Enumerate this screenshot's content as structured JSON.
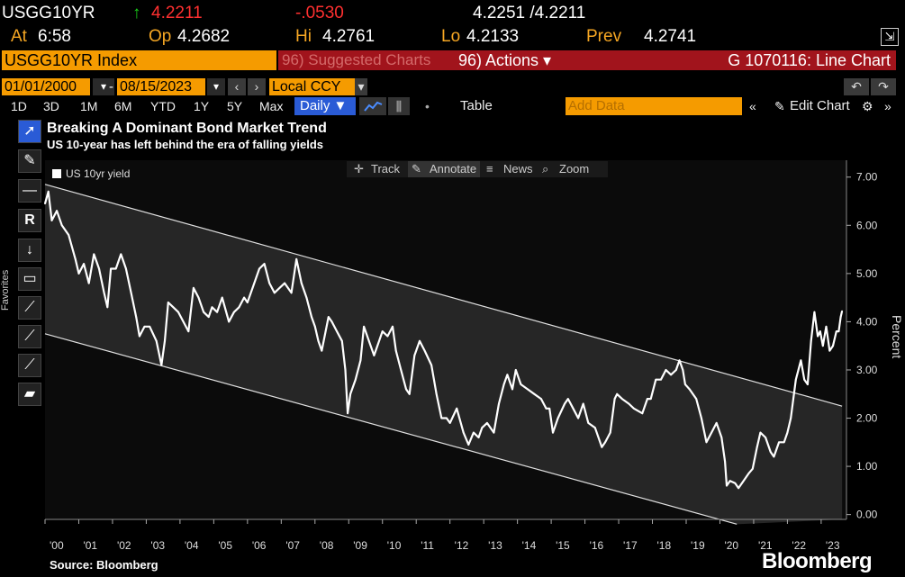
{
  "quote": {
    "ticker": "USGG10YR",
    "arrow": "↑",
    "last": "4.2211",
    "change": "-.0530",
    "bid_ask": "4.2251 /4.2211",
    "at_label": "At",
    "at_value": "6:58",
    "open_label": "Op",
    "open_value": "4.2682",
    "high_label": "Hi",
    "high_value": "4.2761",
    "low_label": "Lo",
    "low_value": "4.2133",
    "prev_label": "Prev",
    "prev_value": "4.2741"
  },
  "security_bar": {
    "index_name": "USGG10YR Index",
    "suggested": "96) Suggested Charts",
    "actions": "96) Actions ▾",
    "chart_id": "G 1070116: Line Chart"
  },
  "controls": {
    "start_date": "01/01/2000",
    "dash": "-",
    "end_date": "08/15/2023",
    "currency": "Local CCY",
    "periods": [
      "1D",
      "3D",
      "1M",
      "6M",
      "YTD",
      "1Y",
      "5Y",
      "Max"
    ],
    "frequency": "Daily ▼",
    "table": "Table",
    "add_data_placeholder": "Add Data",
    "edit_chart": "Edit Chart",
    "favorites": "Favorites"
  },
  "mini_toolbar": {
    "track": "Track",
    "annotate": "Annotate",
    "news": "News",
    "zoom": "Zoom"
  },
  "footer": {
    "source": "Source: Bloomberg",
    "logo": "Bloomberg"
  },
  "colors": {
    "amber": "#f5a623",
    "up_green": "#19d219",
    "down_red": "#ff3030",
    "bar_red": "#a1141c",
    "series": "#ffffff"
  },
  "chart_data": {
    "type": "line",
    "title": "Breaking A Dominant Bond Market Trend",
    "subtitle": "US 10-year has left behind the era of falling yields",
    "ylabel": "Percent",
    "xlabel": "",
    "ylim": [
      -0.1,
      7.35
    ],
    "y_ticks": [
      "7.00",
      "6.00",
      "5.00",
      "4.00",
      "3.00",
      "2.00",
      "1.00",
      "0.00"
    ],
    "x_tick_labels": [
      "'00",
      "'01",
      "'02",
      "'03",
      "'04",
      "'05",
      "'06",
      "'07",
      "'08",
      "'09",
      "'10",
      "'11",
      "'12",
      "'13",
      "'14",
      "'15",
      "'16",
      "'17",
      "'18",
      "'19",
      "'20",
      "'21",
      "'22",
      "'23"
    ],
    "legend": [
      "US 10yr yield"
    ],
    "channel": {
      "upper": [
        [
          2000.0,
          6.85
        ],
        [
          2023.62,
          2.25
        ]
      ],
      "lower": [
        [
          2000.0,
          3.75
        ],
        [
          2020.5,
          -0.2
        ]
      ]
    },
    "series": [
      {
        "name": "US 10yr yield",
        "points": [
          [
            2000.0,
            6.45
          ],
          [
            2000.1,
            6.7
          ],
          [
            2000.2,
            6.1
          ],
          [
            2000.35,
            6.3
          ],
          [
            2000.5,
            6.0
          ],
          [
            2000.7,
            5.8
          ],
          [
            2000.9,
            5.3
          ],
          [
            2001.0,
            5.0
          ],
          [
            2001.15,
            5.2
          ],
          [
            2001.3,
            4.8
          ],
          [
            2001.45,
            5.4
          ],
          [
            2001.6,
            5.1
          ],
          [
            2001.75,
            4.6
          ],
          [
            2001.85,
            4.3
          ],
          [
            2001.95,
            5.1
          ],
          [
            2002.1,
            5.1
          ],
          [
            2002.25,
            5.4
          ],
          [
            2002.4,
            5.1
          ],
          [
            2002.55,
            4.6
          ],
          [
            2002.7,
            4.1
          ],
          [
            2002.8,
            3.7
          ],
          [
            2002.95,
            3.9
          ],
          [
            2003.1,
            3.9
          ],
          [
            2003.3,
            3.6
          ],
          [
            2003.45,
            3.1
          ],
          [
            2003.55,
            3.6
          ],
          [
            2003.65,
            4.4
          ],
          [
            2003.8,
            4.3
          ],
          [
            2003.95,
            4.2
          ],
          [
            2004.1,
            4.0
          ],
          [
            2004.25,
            3.8
          ],
          [
            2004.4,
            4.7
          ],
          [
            2004.55,
            4.5
          ],
          [
            2004.7,
            4.2
          ],
          [
            2004.85,
            4.1
          ],
          [
            2004.95,
            4.3
          ],
          [
            2005.1,
            4.2
          ],
          [
            2005.25,
            4.5
          ],
          [
            2005.45,
            4.0
          ],
          [
            2005.6,
            4.2
          ],
          [
            2005.75,
            4.3
          ],
          [
            2005.9,
            4.5
          ],
          [
            2006.0,
            4.4
          ],
          [
            2006.15,
            4.7
          ],
          [
            2006.35,
            5.1
          ],
          [
            2006.5,
            5.2
          ],
          [
            2006.65,
            4.8
          ],
          [
            2006.8,
            4.6
          ],
          [
            2006.95,
            4.7
          ],
          [
            2007.1,
            4.8
          ],
          [
            2007.3,
            4.6
          ],
          [
            2007.45,
            5.3
          ],
          [
            2007.6,
            4.8
          ],
          [
            2007.75,
            4.5
          ],
          [
            2007.9,
            4.1
          ],
          [
            2008.0,
            3.9
          ],
          [
            2008.1,
            3.6
          ],
          [
            2008.2,
            3.4
          ],
          [
            2008.4,
            4.1
          ],
          [
            2008.5,
            4.0
          ],
          [
            2008.65,
            3.8
          ],
          [
            2008.8,
            3.6
          ],
          [
            2008.9,
            3.0
          ],
          [
            2008.97,
            2.1
          ],
          [
            2009.05,
            2.5
          ],
          [
            2009.2,
            2.8
          ],
          [
            2009.35,
            3.2
          ],
          [
            2009.45,
            3.9
          ],
          [
            2009.6,
            3.6
          ],
          [
            2009.75,
            3.3
          ],
          [
            2009.9,
            3.6
          ],
          [
            2010.0,
            3.8
          ],
          [
            2010.15,
            3.7
          ],
          [
            2010.3,
            3.9
          ],
          [
            2010.4,
            3.4
          ],
          [
            2010.55,
            3.0
          ],
          [
            2010.7,
            2.6
          ],
          [
            2010.8,
            2.5
          ],
          [
            2010.95,
            3.3
          ],
          [
            2011.1,
            3.6
          ],
          [
            2011.25,
            3.4
          ],
          [
            2011.45,
            3.1
          ],
          [
            2011.6,
            2.5
          ],
          [
            2011.75,
            2.0
          ],
          [
            2011.9,
            2.0
          ],
          [
            2012.0,
            1.9
          ],
          [
            2012.2,
            2.2
          ],
          [
            2012.4,
            1.7
          ],
          [
            2012.55,
            1.45
          ],
          [
            2012.7,
            1.7
          ],
          [
            2012.85,
            1.6
          ],
          [
            2012.95,
            1.8
          ],
          [
            2013.1,
            1.9
          ],
          [
            2013.3,
            1.7
          ],
          [
            2013.45,
            2.3
          ],
          [
            2013.6,
            2.7
          ],
          [
            2013.7,
            2.9
          ],
          [
            2013.85,
            2.6
          ],
          [
            2013.95,
            3.0
          ],
          [
            2014.1,
            2.7
          ],
          [
            2014.3,
            2.6
          ],
          [
            2014.5,
            2.5
          ],
          [
            2014.7,
            2.4
          ],
          [
            2014.85,
            2.2
          ],
          [
            2014.95,
            2.2
          ],
          [
            2015.05,
            1.7
          ],
          [
            2015.2,
            2.0
          ],
          [
            2015.4,
            2.3
          ],
          [
            2015.5,
            2.4
          ],
          [
            2015.65,
            2.2
          ],
          [
            2015.8,
            2.0
          ],
          [
            2015.95,
            2.3
          ],
          [
            2016.1,
            1.9
          ],
          [
            2016.3,
            1.8
          ],
          [
            2016.5,
            1.4
          ],
          [
            2016.6,
            1.5
          ],
          [
            2016.75,
            1.7
          ],
          [
            2016.88,
            2.4
          ],
          [
            2016.95,
            2.5
          ],
          [
            2017.1,
            2.4
          ],
          [
            2017.3,
            2.3
          ],
          [
            2017.45,
            2.2
          ],
          [
            2017.7,
            2.1
          ],
          [
            2017.85,
            2.4
          ],
          [
            2017.95,
            2.4
          ],
          [
            2018.1,
            2.8
          ],
          [
            2018.25,
            2.8
          ],
          [
            2018.4,
            3.0
          ],
          [
            2018.55,
            2.9
          ],
          [
            2018.7,
            3.0
          ],
          [
            2018.8,
            3.2
          ],
          [
            2018.9,
            3.0
          ],
          [
            2018.97,
            2.7
          ],
          [
            2019.1,
            2.6
          ],
          [
            2019.3,
            2.4
          ],
          [
            2019.45,
            2.0
          ],
          [
            2019.6,
            1.5
          ],
          [
            2019.75,
            1.7
          ],
          [
            2019.9,
            1.9
          ],
          [
            2020.05,
            1.6
          ],
          [
            2020.15,
            1.1
          ],
          [
            2020.2,
            0.6
          ],
          [
            2020.3,
            0.7
          ],
          [
            2020.45,
            0.65
          ],
          [
            2020.55,
            0.55
          ],
          [
            2020.7,
            0.7
          ],
          [
            2020.85,
            0.85
          ],
          [
            2020.97,
            0.95
          ],
          [
            2021.1,
            1.4
          ],
          [
            2021.2,
            1.7
          ],
          [
            2021.35,
            1.6
          ],
          [
            2021.5,
            1.3
          ],
          [
            2021.6,
            1.2
          ],
          [
            2021.75,
            1.5
          ],
          [
            2021.9,
            1.5
          ],
          [
            2022.0,
            1.7
          ],
          [
            2022.1,
            2.0
          ],
          [
            2022.25,
            2.8
          ],
          [
            2022.4,
            3.2
          ],
          [
            2022.5,
            2.8
          ],
          [
            2022.6,
            2.7
          ],
          [
            2022.7,
            3.6
          ],
          [
            2022.8,
            4.2
          ],
          [
            2022.9,
            3.7
          ],
          [
            2022.97,
            3.8
          ],
          [
            2023.05,
            3.5
          ],
          [
            2023.15,
            3.9
          ],
          [
            2023.25,
            3.4
          ],
          [
            2023.35,
            3.5
          ],
          [
            2023.45,
            3.8
          ],
          [
            2023.52,
            3.8
          ],
          [
            2023.58,
            4.1
          ],
          [
            2023.62,
            4.22
          ]
        ]
      }
    ]
  }
}
